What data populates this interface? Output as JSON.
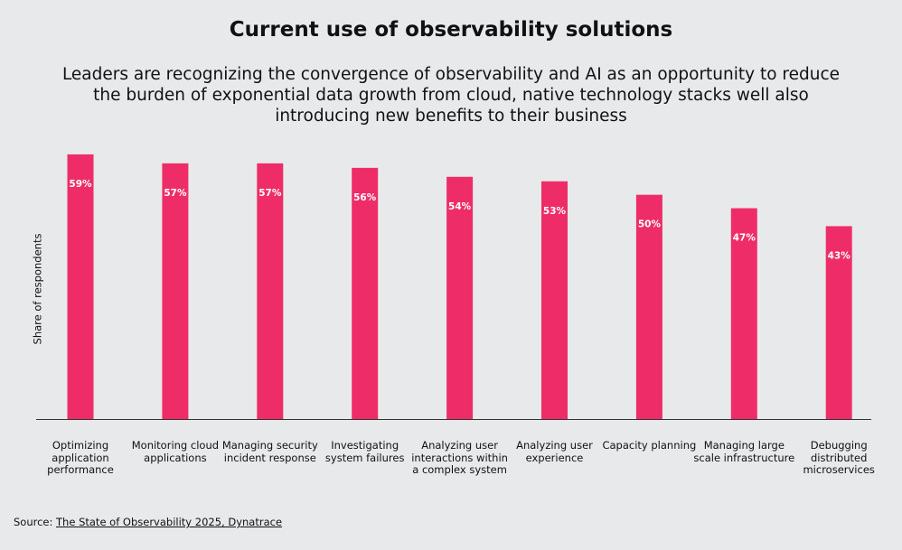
{
  "chart_data": {
    "type": "bar",
    "title": "Current use of observability solutions",
    "subtitle": "Leaders are recognizing the convergence of observability and AI as an opportunity to reduce the burden of exponential data growth from cloud, native technology stacks well also introducing new benefits to their business",
    "y_label": "Share of respondents",
    "categories": [
      "Optimizing application performance",
      "Monitoring cloud applications",
      "Managing security incident response",
      "Investigating system failures",
      "Analyzing user interactions within a complex system",
      "Analyzing user experience",
      "Capacity planning",
      "Managing large scale infrastructure",
      "Debugging distributed microservices"
    ],
    "values": [
      59,
      57,
      57,
      56,
      54,
      53,
      50,
      47,
      43
    ],
    "value_labels": [
      "59%",
      "57%",
      "57%",
      "56%",
      "54%",
      "53%",
      "50%",
      "47%",
      "43%"
    ],
    "color": "#ee2d68",
    "ylim": [
      0,
      60
    ],
    "source": {
      "label": "Source:",
      "text": "The State of Observability 2025, Dynatrace"
    }
  }
}
